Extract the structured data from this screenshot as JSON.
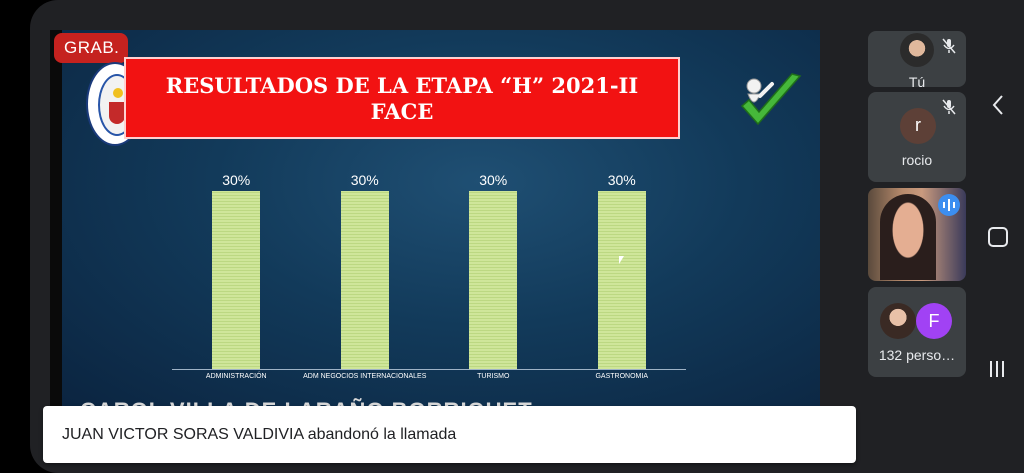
{
  "recording_badge": "GRAB.",
  "slide": {
    "title_line1": "RESULTADOS DE LA ETAPA “H” 2021-II",
    "title_line2": "FACE",
    "cut_text": "CAROL VILLA DE LARAÑO BORRIQUET",
    "chart_data": {
      "type": "bar",
      "categories": [
        "ADMINISTRACIÓN",
        "ADM NEGOCIOS INTERNACIONALES",
        "TURISMO",
        "GASTRONOMIA"
      ],
      "values": [
        30,
        30,
        30,
        30
      ],
      "data_labels": [
        "30%",
        "30%",
        "30%",
        "30%"
      ],
      "ylim": [
        0,
        35
      ],
      "bar_color": "#cfe69a",
      "grid": false
    }
  },
  "toast": {
    "message": "JUAN VICTOR SORAS VALDIVIA abandonó la llamada"
  },
  "participants": {
    "self": {
      "name": "Tú",
      "muted": true
    },
    "rocio": {
      "name": "rocio",
      "initial": "r",
      "muted": true
    },
    "speaker": {
      "speaking": true
    },
    "others": {
      "label": "132 perso…",
      "initial": "F"
    }
  },
  "colors": {
    "record": "#c5221f",
    "banner": "#f21212",
    "meet_bg": "#202124",
    "tile": "#3c4043"
  }
}
